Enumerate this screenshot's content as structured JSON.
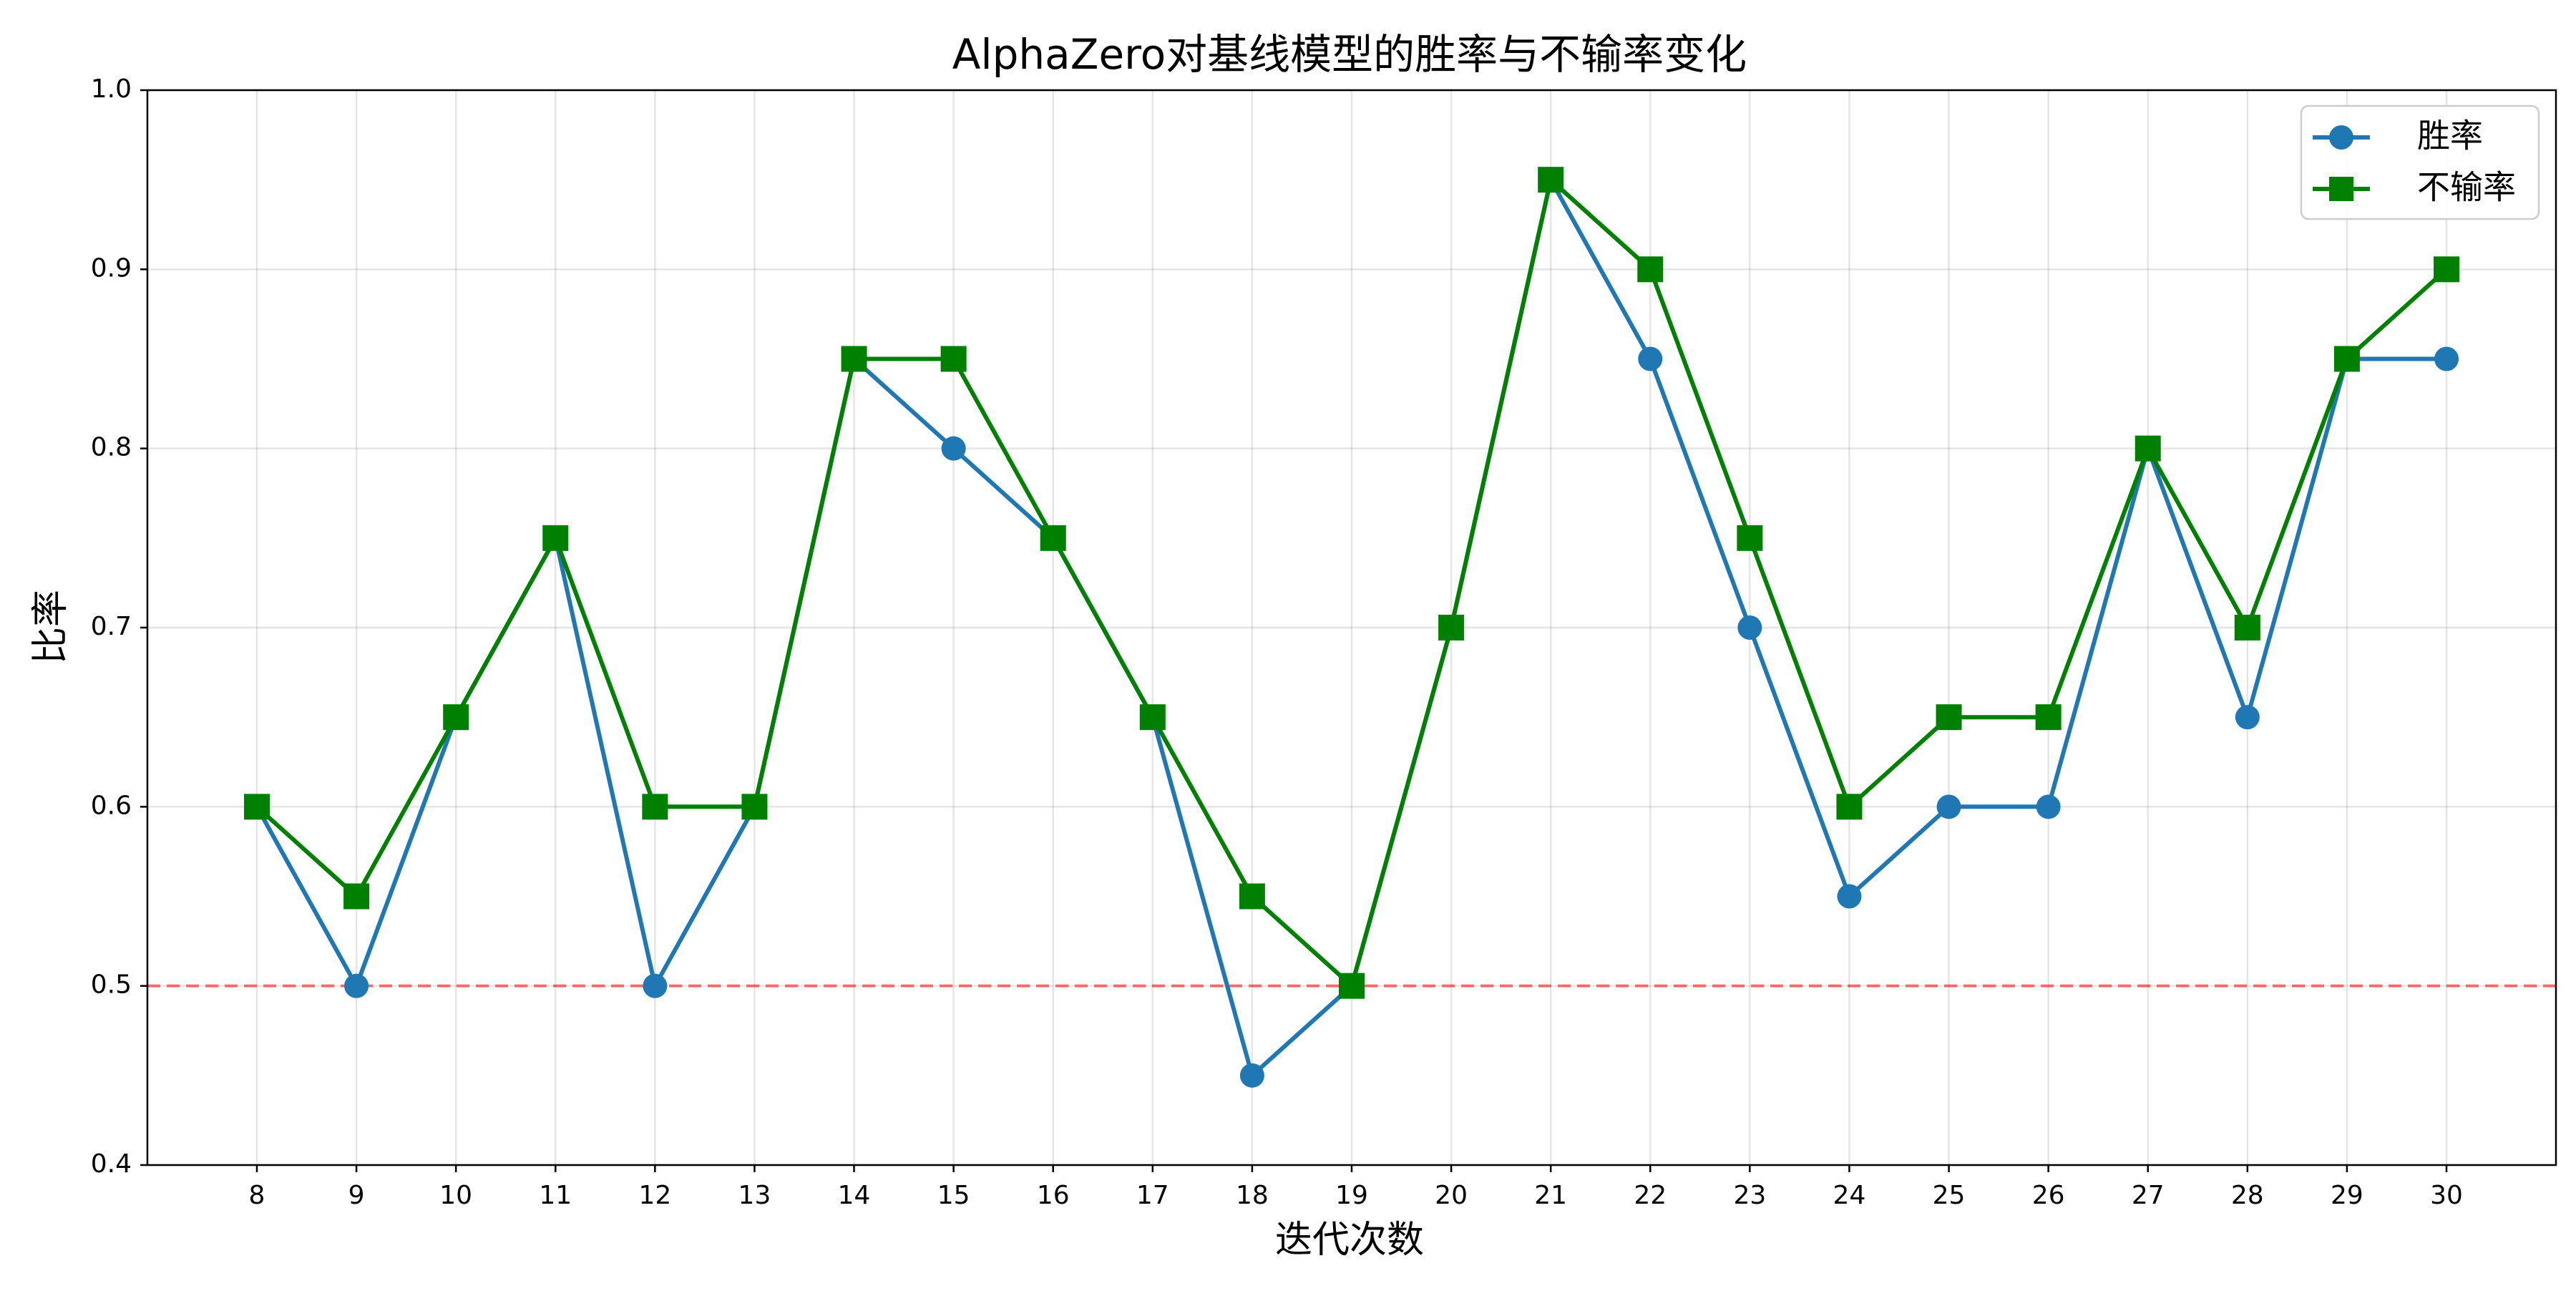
{
  "chart_data": {
    "type": "line",
    "title": "AlphaZero对基线模型的胜率与不输率变化",
    "xlabel": "迭代次数",
    "ylabel": "比率",
    "x": [
      8,
      9,
      10,
      11,
      12,
      13,
      14,
      15,
      16,
      17,
      18,
      19,
      20,
      21,
      22,
      23,
      24,
      25,
      26,
      27,
      28,
      29,
      30
    ],
    "xlim": [
      6.9,
      31.1
    ],
    "ylim": [
      0.4,
      1.0
    ],
    "yticks": [
      "0.4",
      "0.5",
      "0.6",
      "0.7",
      "0.8",
      "0.9",
      "1.0"
    ],
    "grid": true,
    "legend_position": "top-right",
    "series": [
      {
        "name": "胜率",
        "color": "#1f77b4",
        "marker": "circle",
        "values": [
          0.6,
          0.5,
          0.65,
          0.75,
          0.5,
          0.6,
          0.85,
          0.8,
          0.75,
          0.65,
          0.45,
          0.5,
          0.7,
          0.95,
          0.85,
          0.7,
          0.55,
          0.6,
          0.6,
          0.8,
          0.65,
          0.85,
          0.85
        ]
      },
      {
        "name": "不输率",
        "color": "#008000",
        "marker": "square",
        "values": [
          0.6,
          0.55,
          0.65,
          0.75,
          0.6,
          0.6,
          0.85,
          0.85,
          0.75,
          0.65,
          0.55,
          0.5,
          0.7,
          0.95,
          0.9,
          0.75,
          0.6,
          0.65,
          0.65,
          0.8,
          0.7,
          0.85,
          0.9
        ]
      }
    ],
    "reference_line": {
      "y": 0.5,
      "color": "#ff0000",
      "style": "dashed"
    }
  }
}
